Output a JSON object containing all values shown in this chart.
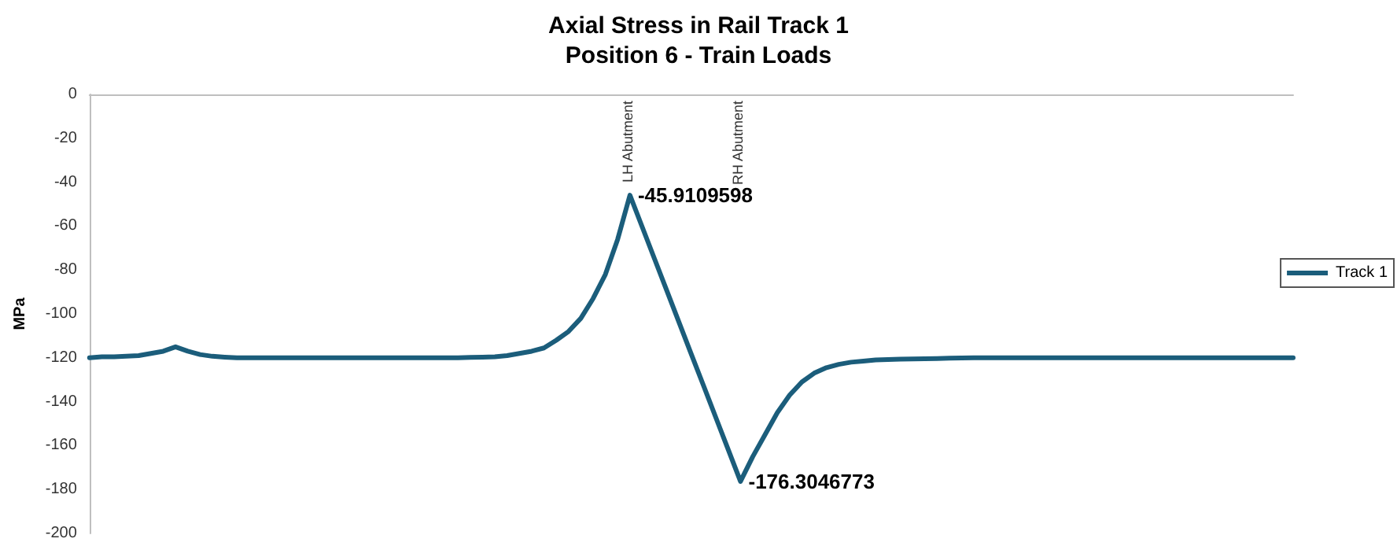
{
  "chart_data": {
    "type": "line",
    "title": "Axial Stress in Rail Track 1",
    "subtitle": "Position 6 - Train Loads",
    "ylabel": "MPa",
    "categories": [
      null,
      null,
      null,
      null,
      null,
      null,
      null,
      null,
      null,
      null,
      null,
      null,
      null,
      null,
      null,
      null,
      null,
      null,
      null,
      null,
      null,
      null,
      null,
      null,
      null,
      null,
      null,
      null,
      null,
      null,
      null,
      null,
      null,
      null,
      null,
      null,
      null,
      null,
      null,
      null,
      null,
      null,
      null,
      null,
      null,
      null,
      null,
      null,
      null,
      null,
      null,
      null,
      null,
      null,
      null,
      null,
      null,
      null,
      null,
      null,
      null,
      null,
      null,
      null,
      null,
      null,
      null,
      null,
      null,
      null,
      null,
      null,
      null,
      null,
      null,
      null,
      null,
      null,
      null,
      null,
      null,
      null,
      null,
      null,
      null,
      null,
      null,
      null,
      null,
      null,
      null,
      null,
      null,
      null,
      null,
      null,
      null,
      null,
      null
    ],
    "series": [
      {
        "name": "Track 1",
        "color": "#1b5d7b",
        "values": [
          -120,
          -119.5,
          -119.5,
          -119.3,
          -119,
          -118,
          -117,
          -115,
          -117,
          -118.5,
          -119.3,
          -119.7,
          -120,
          -120,
          -120,
          -120,
          -120,
          -120,
          -120,
          -120,
          -120,
          -120,
          -120,
          -120,
          -120,
          -120,
          -120,
          -120,
          -120,
          -120,
          -120,
          -119.8,
          -119.7,
          -119.5,
          -119,
          -118,
          -117,
          -115.5,
          -112,
          -108,
          -102,
          -93,
          -82,
          -66,
          -45.9109598,
          -60.4,
          -74.9,
          -89.4,
          -103.9,
          -118.4,
          -132.8,
          -147.3,
          -161.8,
          -176.3046773,
          -165,
          -155,
          -145,
          -137,
          -131,
          -127,
          -124.5,
          -123,
          -122,
          -121.5,
          -121,
          -120.8,
          -120.6,
          -120.5,
          -120.4,
          -120.3,
          -120.2,
          -120.1,
          -120,
          -120,
          -120,
          -120,
          -120,
          -120,
          -120,
          -120,
          -120,
          -120,
          -120,
          -120,
          -120,
          -120,
          -120,
          -120,
          -120,
          -120,
          -120,
          -120,
          -120,
          -120,
          -120,
          -120,
          -120,
          -120,
          -120
        ],
        "value_labels": [
          null,
          null,
          null,
          null,
          null,
          null,
          null,
          null,
          null,
          null,
          null,
          null,
          null,
          null,
          null,
          null,
          null,
          null,
          null,
          null,
          null,
          null,
          null,
          null,
          null,
          null,
          null,
          null,
          null,
          null,
          null,
          null,
          null,
          null,
          null,
          null,
          null,
          null,
          null,
          null,
          null,
          null,
          null,
          null,
          "-45.9109598",
          null,
          null,
          null,
          null,
          null,
          null,
          null,
          null,
          "-176.3046773",
          null,
          null,
          null,
          null,
          null,
          null,
          null,
          null,
          null,
          null,
          null,
          null,
          null,
          null,
          null,
          null,
          null,
          null,
          null,
          null,
          null,
          null,
          null,
          null,
          null,
          null,
          null,
          null,
          null,
          null,
          null,
          null,
          null,
          null,
          null,
          null,
          null,
          null,
          null,
          null,
          null,
          null,
          null,
          null,
          null
        ]
      }
    ],
    "annotations": [
      "LH Abutment",
      "RH Abutment"
    ],
    "ylim": [
      -200,
      0
    ],
    "yticks": [
      0,
      -20,
      -40,
      -60,
      -80,
      -100,
      -120,
      -140,
      -160,
      -180,
      -200
    ],
    "grid": false,
    "legend": "right",
    "marker": "none",
    "line_style": "solid"
  }
}
